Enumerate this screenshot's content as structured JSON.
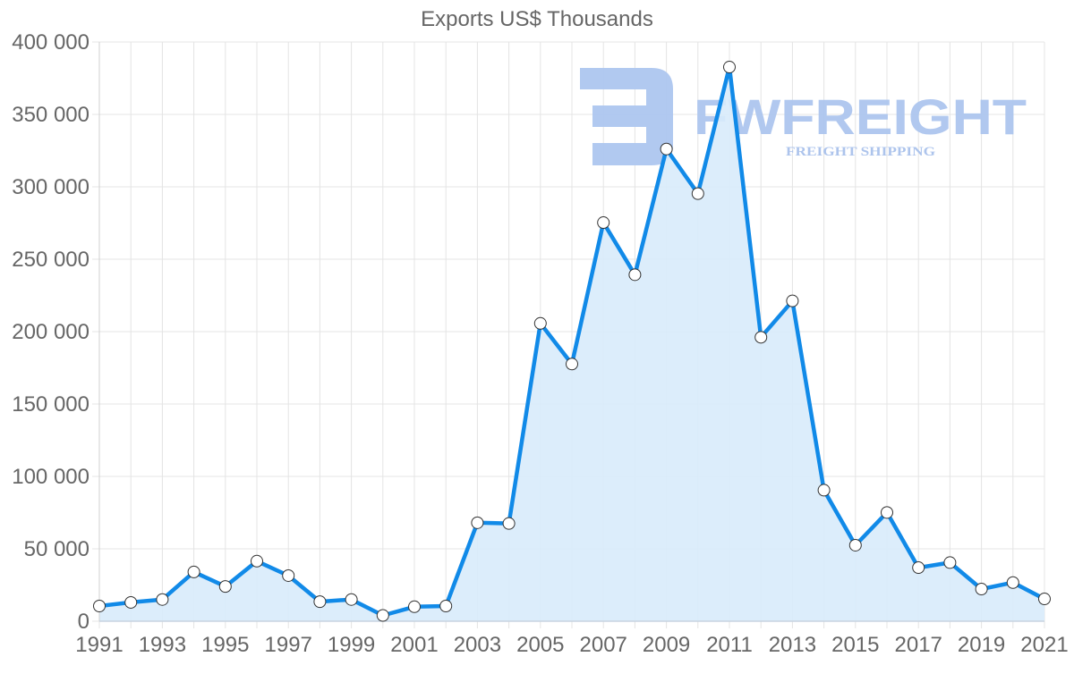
{
  "chart_data": {
    "type": "area",
    "title": "Exports US$ Thousands",
    "xlabel": "",
    "ylabel": "",
    "x": [
      1991,
      1992,
      1993,
      1994,
      1995,
      1996,
      1997,
      1998,
      1999,
      2000,
      2001,
      2002,
      2003,
      2004,
      2005,
      2006,
      2007,
      2008,
      2009,
      2010,
      2011,
      2012,
      2013,
      2014,
      2015,
      2016,
      2017,
      2018,
      2019,
      2020,
      2021
    ],
    "series": [
      {
        "name": "Exports US$ Thousands",
        "values": [
          10500,
          13000,
          15000,
          34000,
          24000,
          41500,
          31500,
          13500,
          15000,
          4000,
          10000,
          10500,
          68000,
          67500,
          205700,
          177600,
          275300,
          239300,
          326100,
          295300,
          382700,
          196100,
          221200,
          90500,
          52500,
          75100,
          37000,
          40500,
          22200,
          26700,
          15400
        ]
      }
    ],
    "ylim": [
      0,
      400000
    ],
    "yticks": [
      "0",
      "50 000",
      "100 000",
      "150 000",
      "200 000",
      "250 000",
      "300 000",
      "350 000",
      "400 000"
    ],
    "xticks": [
      "1991",
      "1993",
      "1995",
      "1997",
      "1999",
      "2001",
      "2003",
      "2005",
      "2007",
      "2009",
      "2011",
      "2013",
      "2015",
      "2017",
      "2019",
      "2021"
    ],
    "grid": true,
    "legend": "none",
    "colors": {
      "line": "#118ae8",
      "fill": "#d8ebfb",
      "point_fill": "#ffffff",
      "point_stroke": "#333333",
      "grid": "#e4e4e4"
    }
  },
  "watermark": {
    "brand": "FWFREIGHT",
    "tagline": "FREIGHT SHIPPING"
  }
}
